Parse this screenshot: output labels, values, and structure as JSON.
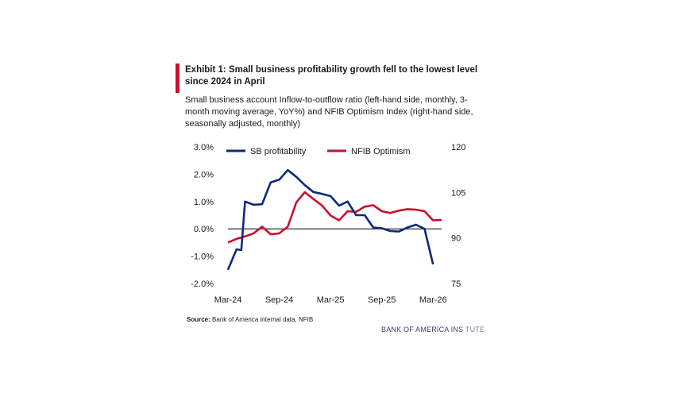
{
  "header": {
    "title": "Exhibit 1: Small business profitability growth fell to the lowest level since 2024 in April",
    "subtitle": "Small business account Inflow-to-outflow ratio (left-hand side, monthly, 3-month moving average, YoY%) and NFIB Optimism Index (right-hand side, seasonally adjusted, monthly)"
  },
  "footer": {
    "source_label": "Source:",
    "source_text": "Bank of America internal data, NFIB",
    "brand_dark": "BANK OF AMERICA INS",
    "brand_light": "TUTE"
  },
  "colors": {
    "sb_profitability": "#0b2a7a",
    "nfib_optimism": "#c8102e",
    "accent_bar": "#c8102e"
  },
  "chart_data": {
    "type": "line",
    "x": [
      "Mar-24",
      "Apr-24",
      "May-24",
      "Jun-24",
      "Jul-24",
      "Aug-24",
      "Sep-24",
      "Oct-24",
      "Nov-24",
      "Dec-24",
      "Jan-25",
      "Feb-25",
      "Mar-25",
      "Apr-25",
      "May-25",
      "Jun-25",
      "Jul-25",
      "Aug-25",
      "Sep-25",
      "Oct-25",
      "Nov-25",
      "Dec-25",
      "Jan-26",
      "Feb-26",
      "Mar-26",
      "Apr-26"
    ],
    "x_tick_labels": [
      "Mar-24",
      "Sep-24",
      "Mar-25",
      "Sep-25",
      "Mar-26"
    ],
    "left_axis": {
      "ylim": [
        -2.0,
        3.0
      ],
      "ticks": [
        "-2.0%",
        "-1.0%",
        "0.0%",
        "1.0%",
        "2.0%",
        "3.0%"
      ]
    },
    "right_axis": {
      "ylim": [
        75,
        120
      ],
      "ticks": [
        "75",
        "90",
        "105",
        "120"
      ]
    },
    "series": [
      {
        "name": "SB profitability",
        "axis": "left",
        "points": [
          [
            "Mar-24",
            -1.5
          ],
          [
            "Apr-24",
            -0.75
          ],
          [
            "Apr-24",
            -0.78
          ],
          [
            "May-24",
            1.0
          ],
          [
            "Jun-24",
            0.88
          ],
          [
            "Jul-24",
            0.9
          ],
          [
            "Aug-24",
            1.7
          ],
          [
            "Sep-24",
            1.8
          ],
          [
            "Oct-24",
            2.15
          ],
          [
            "Nov-24",
            1.9
          ],
          [
            "Dec-24",
            1.6
          ],
          [
            "Jan-25",
            1.35
          ],
          [
            "Feb-25",
            1.28
          ],
          [
            "Mar-25",
            1.2
          ],
          [
            "Apr-25",
            0.85
          ],
          [
            "May-25",
            1.0
          ],
          [
            "Jun-25",
            0.5
          ],
          [
            "Jul-25",
            0.5
          ],
          [
            "Aug-25",
            0.05
          ],
          [
            "Sep-25",
            0.02
          ],
          [
            "Oct-25",
            -0.08
          ],
          [
            "Nov-25",
            -0.1
          ],
          [
            "Dec-25",
            0.05
          ],
          [
            "Jan-26",
            0.15
          ],
          [
            "Feb-26",
            0.0
          ],
          [
            "Mar-26",
            -1.3
          ]
        ]
      },
      {
        "name": "NFIB Optimism",
        "axis": "right",
        "points": [
          [
            "Mar-24",
            88.5
          ],
          [
            "Apr-24",
            89.7
          ],
          [
            "May-24",
            90.5
          ],
          [
            "Jun-24",
            91.5
          ],
          [
            "Jul-24",
            93.7
          ],
          [
            "Aug-24",
            91.2
          ],
          [
            "Sep-24",
            91.5
          ],
          [
            "Oct-24",
            93.7
          ],
          [
            "Nov-24",
            101.7
          ],
          [
            "Dec-24",
            105.1
          ],
          [
            "Jan-25",
            102.8
          ],
          [
            "Feb-25",
            100.7
          ],
          [
            "Mar-25",
            97.4
          ],
          [
            "Apr-25",
            95.8
          ],
          [
            "May-25",
            98.8
          ],
          [
            "Jun-25",
            98.6
          ],
          [
            "Jul-25",
            100.3
          ],
          [
            "Aug-25",
            100.8
          ],
          [
            "Sep-25",
            98.8
          ],
          [
            "Oct-25",
            98.2
          ],
          [
            "Nov-25",
            99.0
          ],
          [
            "Dec-25",
            99.5
          ],
          [
            "Jan-26",
            99.3
          ],
          [
            "Feb-26",
            98.8
          ],
          [
            "Mar-26",
            95.8
          ],
          [
            "Apr-26",
            95.9
          ]
        ]
      }
    ],
    "zero_line": true,
    "legend": "top"
  }
}
